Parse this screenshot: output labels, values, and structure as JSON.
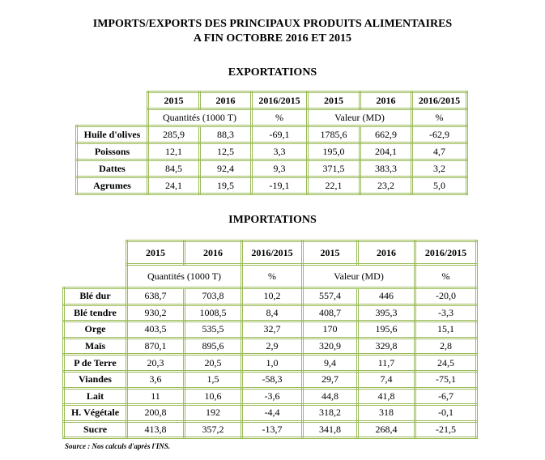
{
  "title": [
    "IMPORTS/EXPORTS DES PRINCIPAUX PRODUITS ALIMENTAIRES",
    "A FIN OCTOBRE 2016 ET 2015"
  ],
  "exports": {
    "title": "EXPORTATIONS",
    "years": [
      "2015",
      "2016",
      "2016/2015",
      "2015",
      "2016",
      "2016/2015"
    ],
    "units": [
      "Quantités (1000 T)",
      "%",
      "Valeur (MD)",
      "%"
    ],
    "rows": [
      [
        "Huile d'olives",
        "285,9",
        "88,3",
        "-69,1",
        "1785,6",
        "662,9",
        "-62,9"
      ],
      [
        "Poissons",
        "12,1",
        "12,5",
        "3,3",
        "195,0",
        "204,1",
        "4,7"
      ],
      [
        "Dattes",
        "84,5",
        "92,4",
        "9,3",
        "371,5",
        "383,3",
        "3,2"
      ],
      [
        "Agrumes",
        "24,1",
        "19,5",
        "-19,1",
        "22,1",
        "23,2",
        "5,0"
      ]
    ]
  },
  "imports": {
    "title": "IMPORTATIONS",
    "years": [
      "2015",
      "2016",
      "2016/2015",
      "2015",
      "2016",
      "2016/2015"
    ],
    "units": [
      "Quantités (1000 T)",
      "%",
      "Valeur (MD)",
      "%"
    ],
    "rows": [
      [
        "Blé dur",
        "638,7",
        "703,8",
        "10,2",
        "557,4",
        "446",
        "-20,0"
      ],
      [
        "Blé tendre",
        "930,2",
        "1008,5",
        "8,4",
        "408,7",
        "395,3",
        "-3,3"
      ],
      [
        "Orge",
        "403,5",
        "535,5",
        "32,7",
        "170",
        "195,6",
        "15,1"
      ],
      [
        "Maïs",
        "870,1",
        "895,6",
        "2,9",
        "320,9",
        "329,8",
        "2,8"
      ],
      [
        "P de Terre",
        "20,3",
        "20,5",
        "1,0",
        "9,4",
        "11,7",
        "24,5"
      ],
      [
        "Viandes",
        "3,6",
        "1,5",
        "-58,3",
        "29,7",
        "7,4",
        "-75,1"
      ],
      [
        "Lait",
        "11",
        "10,6",
        "-3,6",
        "44,8",
        "41,8",
        "-6,7"
      ],
      [
        "H. Végétale",
        "200,8",
        "192",
        "-4,4",
        "318,2",
        "318",
        "-0,1"
      ],
      [
        "Sucre",
        "413,8",
        "357,2",
        "-13,7",
        "341,8",
        "268,4",
        "-21,5"
      ]
    ]
  },
  "source": "Source : Nos calculs d'après l'INS."
}
